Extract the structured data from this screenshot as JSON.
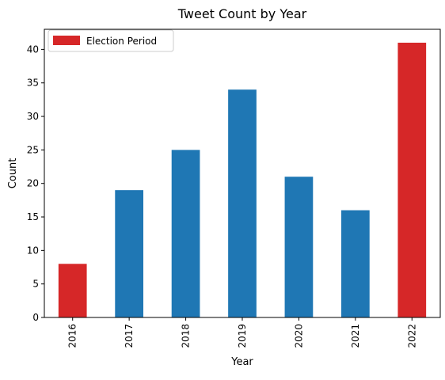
{
  "chart_data": {
    "type": "bar",
    "title": "Tweet Count by Year",
    "xlabel": "Year",
    "ylabel": "Count",
    "categories": [
      "2016",
      "2017",
      "2018",
      "2019",
      "2020",
      "2021",
      "2022"
    ],
    "values": [
      8,
      19,
      25,
      34,
      21,
      16,
      41
    ],
    "bar_colors": [
      "#d62728",
      "#1f77b4",
      "#1f77b4",
      "#1f77b4",
      "#1f77b4",
      "#1f77b4",
      "#d62728"
    ],
    "ylim": [
      0,
      43
    ],
    "yticks": [
      0,
      5,
      10,
      15,
      20,
      25,
      30,
      35,
      40
    ],
    "x_tick_rotation": "vertical",
    "grid": false,
    "legend": {
      "placement": "upper-left",
      "entries": [
        {
          "label": "Election Period",
          "color": "#d62728"
        }
      ]
    }
  }
}
